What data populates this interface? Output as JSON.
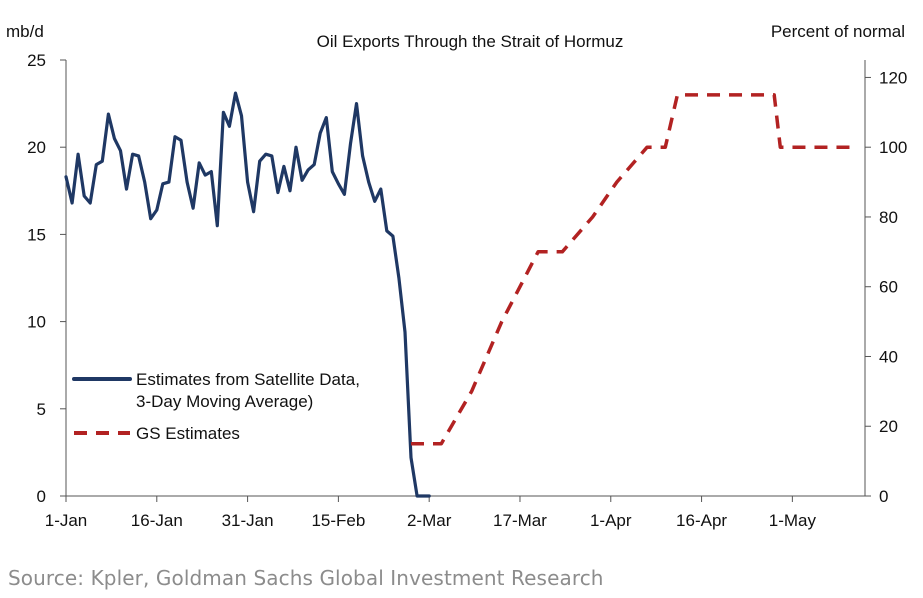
{
  "chart_data": {
    "type": "line",
    "title": "Oil Exports Through the Strait of Hormuz",
    "left_axis": {
      "label": "mb/d",
      "ylim": [
        0,
        25
      ],
      "ticks": [
        0,
        5,
        10,
        15,
        20,
        25
      ]
    },
    "right_axis": {
      "label": "Percent of normal",
      "ylim": [
        0,
        125
      ],
      "ticks": [
        0,
        20,
        40,
        60,
        80,
        100,
        120
      ]
    },
    "x_axis": {
      "tick_labels": [
        "1-Jan",
        "16-Jan",
        "31-Jan",
        "15-Feb",
        "2-Mar",
        "17-Mar",
        "1-Apr",
        "16-Apr",
        "1-May"
      ],
      "tick_days": [
        0,
        15,
        30,
        45,
        60,
        75,
        90,
        105,
        120
      ],
      "xlim": [
        0,
        132
      ]
    },
    "grid": false,
    "legend": {
      "placement": "left",
      "entries": [
        {
          "label_line1": "Estimates from Satellite Data,",
          "label_line2": "3-Day Moving Average)",
          "style": "solid",
          "color": "#1f3864"
        },
        {
          "label_line1": "GS Estimates",
          "style": "dashed",
          "color": "#b22222"
        }
      ]
    },
    "series": [
      {
        "name": "Estimates from Satellite Data, 3-Day Moving Average)",
        "axis": "left",
        "color": "#1f3864",
        "style": "solid",
        "points": [
          [
            0,
            18.3
          ],
          [
            1,
            16.8
          ],
          [
            2,
            19.6
          ],
          [
            3,
            17.2
          ],
          [
            4,
            16.8
          ],
          [
            5,
            19.0
          ],
          [
            6,
            19.2
          ],
          [
            7,
            21.9
          ],
          [
            8,
            20.5
          ],
          [
            9,
            19.8
          ],
          [
            10,
            17.6
          ],
          [
            11,
            19.6
          ],
          [
            12,
            19.5
          ],
          [
            13,
            18.0
          ],
          [
            14,
            15.9
          ],
          [
            15,
            16.4
          ],
          [
            16,
            17.9
          ],
          [
            17,
            18.0
          ],
          [
            18,
            20.6
          ],
          [
            19,
            20.4
          ],
          [
            20,
            18.0
          ],
          [
            21,
            16.5
          ],
          [
            22,
            19.1
          ],
          [
            23,
            18.4
          ],
          [
            24,
            18.6
          ],
          [
            25,
            15.5
          ],
          [
            26,
            22.0
          ],
          [
            27,
            21.2
          ],
          [
            28,
            23.1
          ],
          [
            29,
            21.8
          ],
          [
            30,
            18.0
          ],
          [
            31,
            16.3
          ],
          [
            32,
            19.2
          ],
          [
            33,
            19.6
          ],
          [
            34,
            19.5
          ],
          [
            35,
            17.4
          ],
          [
            36,
            18.9
          ],
          [
            37,
            17.5
          ],
          [
            38,
            20.0
          ],
          [
            39,
            18.1
          ],
          [
            40,
            18.7
          ],
          [
            41,
            19.0
          ],
          [
            42,
            20.8
          ],
          [
            43,
            21.7
          ],
          [
            44,
            18.6
          ],
          [
            45,
            17.9
          ],
          [
            46,
            17.3
          ],
          [
            47,
            20.2
          ],
          [
            48,
            22.5
          ],
          [
            49,
            19.5
          ],
          [
            50,
            18.0
          ],
          [
            51,
            16.9
          ],
          [
            52,
            17.6
          ],
          [
            53,
            15.2
          ],
          [
            54,
            14.9
          ],
          [
            55,
            12.5
          ],
          [
            56,
            9.4
          ],
          [
            57,
            2.2
          ],
          [
            58,
            0.0
          ],
          [
            59,
            0.0
          ],
          [
            60,
            0.0
          ]
        ]
      },
      {
        "name": "GS Estimates",
        "axis": "right",
        "color": "#b22222",
        "style": "dashed",
        "points": [
          [
            57,
            15
          ],
          [
            62,
            15
          ],
          [
            67,
            30
          ],
          [
            72,
            50
          ],
          [
            78,
            70
          ],
          [
            82,
            70
          ],
          [
            87,
            80
          ],
          [
            91,
            90
          ],
          [
            96,
            100
          ],
          [
            99,
            100
          ],
          [
            101,
            115
          ],
          [
            113,
            115
          ],
          [
            117,
            115
          ],
          [
            118,
            100
          ],
          [
            126,
            100
          ],
          [
            130,
            100
          ]
        ]
      }
    ]
  },
  "source_text": "Source: Kpler, Goldman Sachs Global Investment Research"
}
